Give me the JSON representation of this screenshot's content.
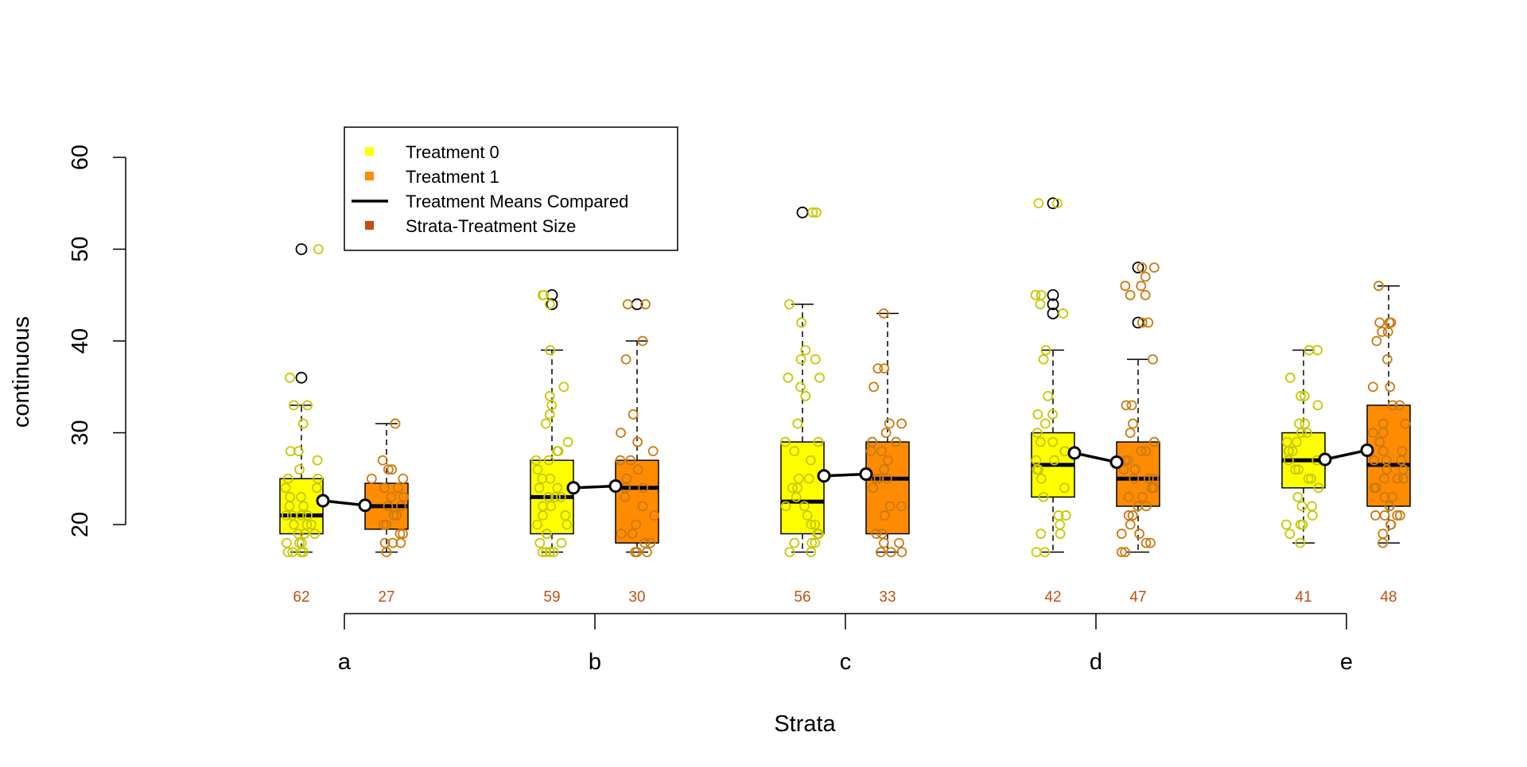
{
  "chart_data": {
    "type": "boxplot",
    "xlabel": "Strata",
    "ylabel": "continuous",
    "ylim": [
      10,
      62
    ],
    "yticks": [
      20,
      30,
      40,
      50,
      60
    ],
    "categories": [
      "a",
      "b",
      "c",
      "d",
      "e"
    ],
    "colors": {
      "treatment0": "#FFFF00",
      "treatment1": "#FF8C00",
      "points0": "#C8C800",
      "points1": "#CC7A10",
      "size_label": "#C05010",
      "means": "#000000"
    },
    "legend": {
      "position": "top-left",
      "entries": [
        {
          "label": "Treatment 0",
          "color": "#FFFF00",
          "symbol": "square"
        },
        {
          "label": "Treatment 1",
          "color": "#FF8C00",
          "symbol": "square"
        },
        {
          "label": "Treatment Means Compared",
          "color": "#000000",
          "symbol": "line"
        },
        {
          "label": "Strata-Treatment Size",
          "color": "#C05010",
          "symbol": "square"
        }
      ]
    },
    "series": [
      {
        "name": "Treatment 0",
        "boxes": [
          {
            "stratum": "a",
            "q1": 19,
            "median": 21,
            "q3": 25,
            "whisker_low": 17,
            "whisker_high": 33,
            "mean": 22.6,
            "n": 62,
            "outliers": [
              36,
              50
            ],
            "points": [
              17,
              17,
              17,
              17,
              18,
              18,
              18,
              19,
              19,
              19,
              20,
              20,
              20,
              21,
              21,
              21,
              21,
              22,
              22,
              23,
              23,
              24,
              24,
              25,
              25,
              26,
              27,
              28,
              28,
              31,
              33,
              33,
              36,
              50
            ]
          },
          {
            "stratum": "b",
            "q1": 19,
            "median": 23,
            "q3": 27,
            "whisker_low": 17,
            "whisker_high": 39,
            "mean": 24.0,
            "n": 59,
            "outliers": [
              44,
              45
            ],
            "points": [
              17,
              17,
              17,
              17,
              18,
              18,
              19,
              19,
              20,
              20,
              21,
              21,
              22,
              22,
              23,
              23,
              23,
              24,
              24,
              25,
              25,
              26,
              27,
              27,
              28,
              28,
              29,
              31,
              32,
              33,
              34,
              35,
              39,
              44,
              45,
              45
            ]
          },
          {
            "stratum": "c",
            "q1": 19,
            "median": 22.5,
            "q3": 29,
            "whisker_low": 17,
            "whisker_high": 44,
            "mean": 25.3,
            "n": 56,
            "outliers": [
              54
            ],
            "points": [
              17,
              17,
              18,
              18,
              18,
              19,
              19,
              20,
              20,
              21,
              22,
              22,
              23,
              24,
              24,
              25,
              25,
              27,
              28,
              29,
              29,
              31,
              34,
              35,
              36,
              36,
              38,
              38,
              39,
              42,
              44,
              54,
              54
            ]
          },
          {
            "stratum": "d",
            "q1": 23,
            "median": 26.5,
            "q3": 30,
            "whisker_low": 17,
            "whisker_high": 39,
            "mean": 27.8,
            "n": 42,
            "outliers": [
              43,
              44,
              45,
              55
            ],
            "points": [
              17,
              17,
              19,
              19,
              20,
              21,
              21,
              23,
              24,
              25,
              26,
              26,
              27,
              27,
              28,
              28,
              29,
              29,
              30,
              31,
              32,
              32,
              34,
              38,
              39,
              43,
              44,
              45,
              45,
              55,
              55
            ]
          },
          {
            "stratum": "e",
            "q1": 24,
            "median": 27,
            "q3": 30,
            "whisker_low": 18,
            "whisker_high": 39,
            "mean": 27.1,
            "n": 41,
            "outliers": [],
            "points": [
              18,
              19,
              20,
              20,
              20,
              21,
              22,
              22,
              23,
              24,
              25,
              25,
              26,
              26,
              27,
              27,
              28,
              28,
              28,
              29,
              29,
              30,
              30,
              31,
              31,
              33,
              34,
              34,
              36,
              39,
              39
            ]
          }
        ]
      },
      {
        "name": "Treatment 1",
        "boxes": [
          {
            "stratum": "a",
            "q1": 19.5,
            "median": 22,
            "q3": 24.5,
            "whisker_low": 17,
            "whisker_high": 31,
            "mean": 22.1,
            "n": 27,
            "outliers": [],
            "points": [
              17,
              18,
              18,
              18,
              19,
              19,
              20,
              20,
              21,
              21,
              22,
              22,
              23,
              23,
              24,
              24,
              25,
              25,
              26,
              26,
              27,
              31
            ]
          },
          {
            "stratum": "b",
            "q1": 18,
            "median": 24,
            "q3": 27,
            "whisker_low": 17,
            "whisker_high": 40,
            "mean": 24.2,
            "n": 30,
            "outliers": [
              44
            ],
            "points": [
              17,
              17,
              17,
              18,
              18,
              19,
              19,
              20,
              21,
              22,
              23,
              24,
              24,
              25,
              26,
              27,
              27,
              28,
              29,
              30,
              32,
              38,
              40,
              44,
              44
            ]
          },
          {
            "stratum": "c",
            "q1": 19,
            "median": 25,
            "q3": 29,
            "whisker_low": 17,
            "whisker_high": 43,
            "mean": 25.5,
            "n": 33,
            "outliers": [],
            "points": [
              17,
              17,
              17,
              18,
              18,
              19,
              19,
              21,
              22,
              22,
              24,
              25,
              25,
              25,
              26,
              27,
              28,
              28,
              29,
              29,
              30,
              31,
              31,
              35,
              37,
              37,
              43
            ]
          },
          {
            "stratum": "d",
            "q1": 22,
            "median": 25,
            "q3": 29,
            "whisker_low": 17,
            "whisker_high": 38,
            "mean": 26.8,
            "n": 47,
            "outliers": [
              42,
              48
            ],
            "points": [
              17,
              17,
              18,
              18,
              19,
              19,
              20,
              21,
              21,
              22,
              22,
              23,
              23,
              24,
              24,
              25,
              25,
              25,
              26,
              26,
              27,
              27,
              28,
              28,
              29,
              30,
              31,
              33,
              33,
              38,
              42,
              42,
              45,
              45,
              46,
              46,
              47,
              48,
              48
            ]
          },
          {
            "stratum": "e",
            "q1": 22,
            "median": 26.5,
            "q3": 33,
            "whisker_low": 18,
            "whisker_high": 46,
            "mean": 28.1,
            "n": 48,
            "outliers": [],
            "points": [
              18,
              19,
              20,
              20,
              21,
              21,
              21,
              21,
              22,
              22,
              23,
              23,
              24,
              24,
              25,
              25,
              25,
              26,
              26,
              27,
              27,
              27,
              28,
              28,
              29,
              29,
              30,
              30,
              31,
              31,
              33,
              33,
              35,
              35,
              38,
              40,
              41,
              41,
              42,
              42,
              42,
              46
            ]
          }
        ]
      }
    ]
  }
}
